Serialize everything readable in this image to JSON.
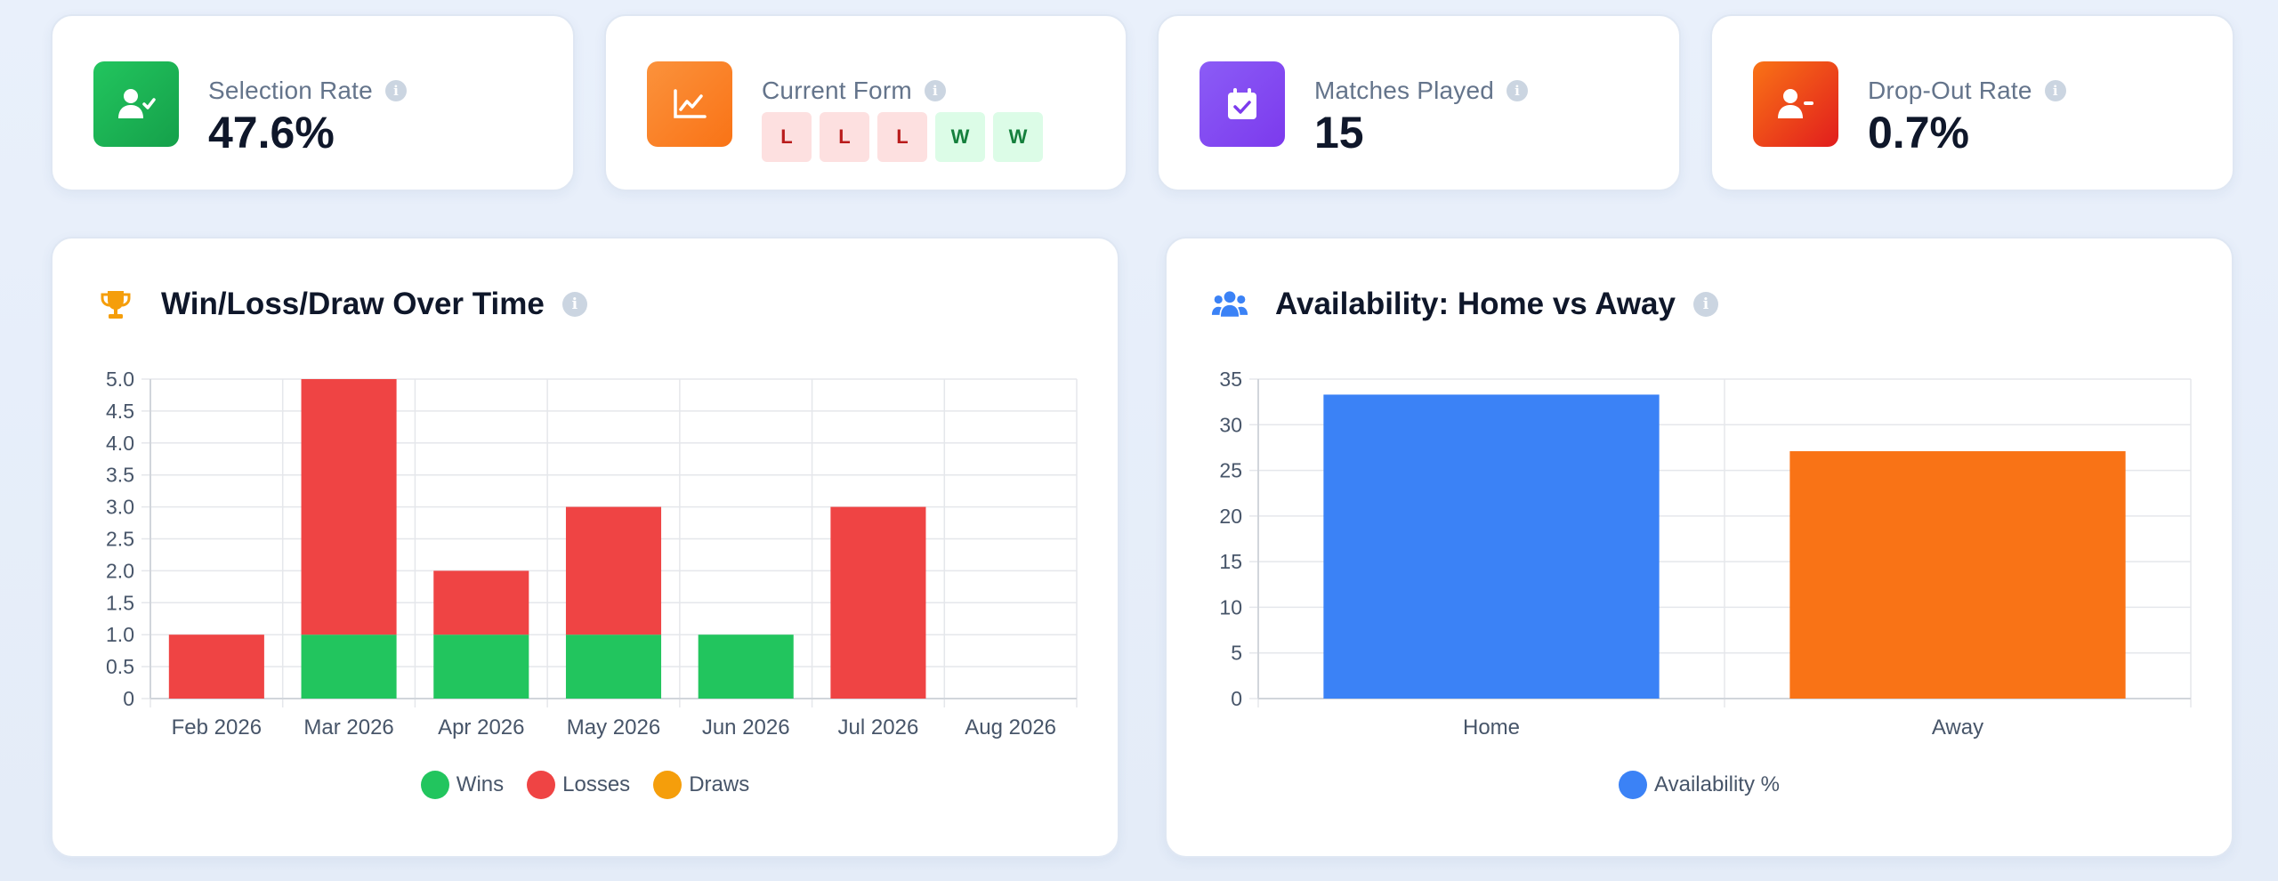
{
  "stats": [
    {
      "label": "Selection Rate",
      "value": "47.6%",
      "icon": "user-check-icon",
      "color": "#16a34a"
    },
    {
      "label": "Current Form",
      "form": [
        "L",
        "L",
        "L",
        "W",
        "W"
      ],
      "icon": "chart-line-icon",
      "color": "#f97316"
    },
    {
      "label": "Matches Played",
      "value": "15",
      "icon": "calendar-check-icon",
      "color": "#7c3aed"
    },
    {
      "label": "Drop-Out Rate",
      "value": "0.7%",
      "icon": "user-minus-icon",
      "color": "#ea580c"
    }
  ],
  "info_glyph": "i",
  "charts": {
    "wld": {
      "title": "Win/Loss/Draw Over Time",
      "icon": "trophy-icon"
    },
    "availability": {
      "title": "Availability: Home vs Away",
      "icon": "users-icon"
    }
  },
  "chart_data": [
    {
      "type": "bar",
      "stacked": true,
      "title": "Win/Loss/Draw Over Time",
      "categories": [
        "Feb 2026",
        "Mar 2026",
        "Apr 2026",
        "May 2026",
        "Jun 2026",
        "Jul 2026",
        "Aug 2026"
      ],
      "series": [
        {
          "name": "Wins",
          "color": "#22c55e",
          "values": [
            0,
            1,
            1,
            1,
            1,
            0,
            0
          ]
        },
        {
          "name": "Losses",
          "color": "#ef4444",
          "values": [
            1,
            4,
            1,
            2,
            0,
            3,
            0
          ]
        },
        {
          "name": "Draws",
          "color": "#f59e0b",
          "values": [
            0,
            0,
            0,
            0,
            0,
            0,
            0
          ]
        }
      ],
      "ylim": [
        0,
        5
      ],
      "yticks": [
        "0",
        "0.5",
        "1.0",
        "1.5",
        "2.0",
        "2.5",
        "3.0",
        "3.5",
        "4.0",
        "4.5",
        "5.0"
      ],
      "grid": true,
      "legend": "bottom"
    },
    {
      "type": "bar",
      "title": "Availability: Home vs Away",
      "categories": [
        "Home",
        "Away"
      ],
      "series": [
        {
          "name": "Availability %",
          "color": "#3b82f6",
          "values": [
            33.3,
            27.1
          ],
          "bar_colors": [
            "#3b82f6",
            "#f97316"
          ]
        }
      ],
      "ylim": [
        0,
        35
      ],
      "yticks": [
        "0",
        "5",
        "10",
        "15",
        "20",
        "25",
        "30",
        "35"
      ],
      "grid": true,
      "legend": "bottom"
    }
  ]
}
